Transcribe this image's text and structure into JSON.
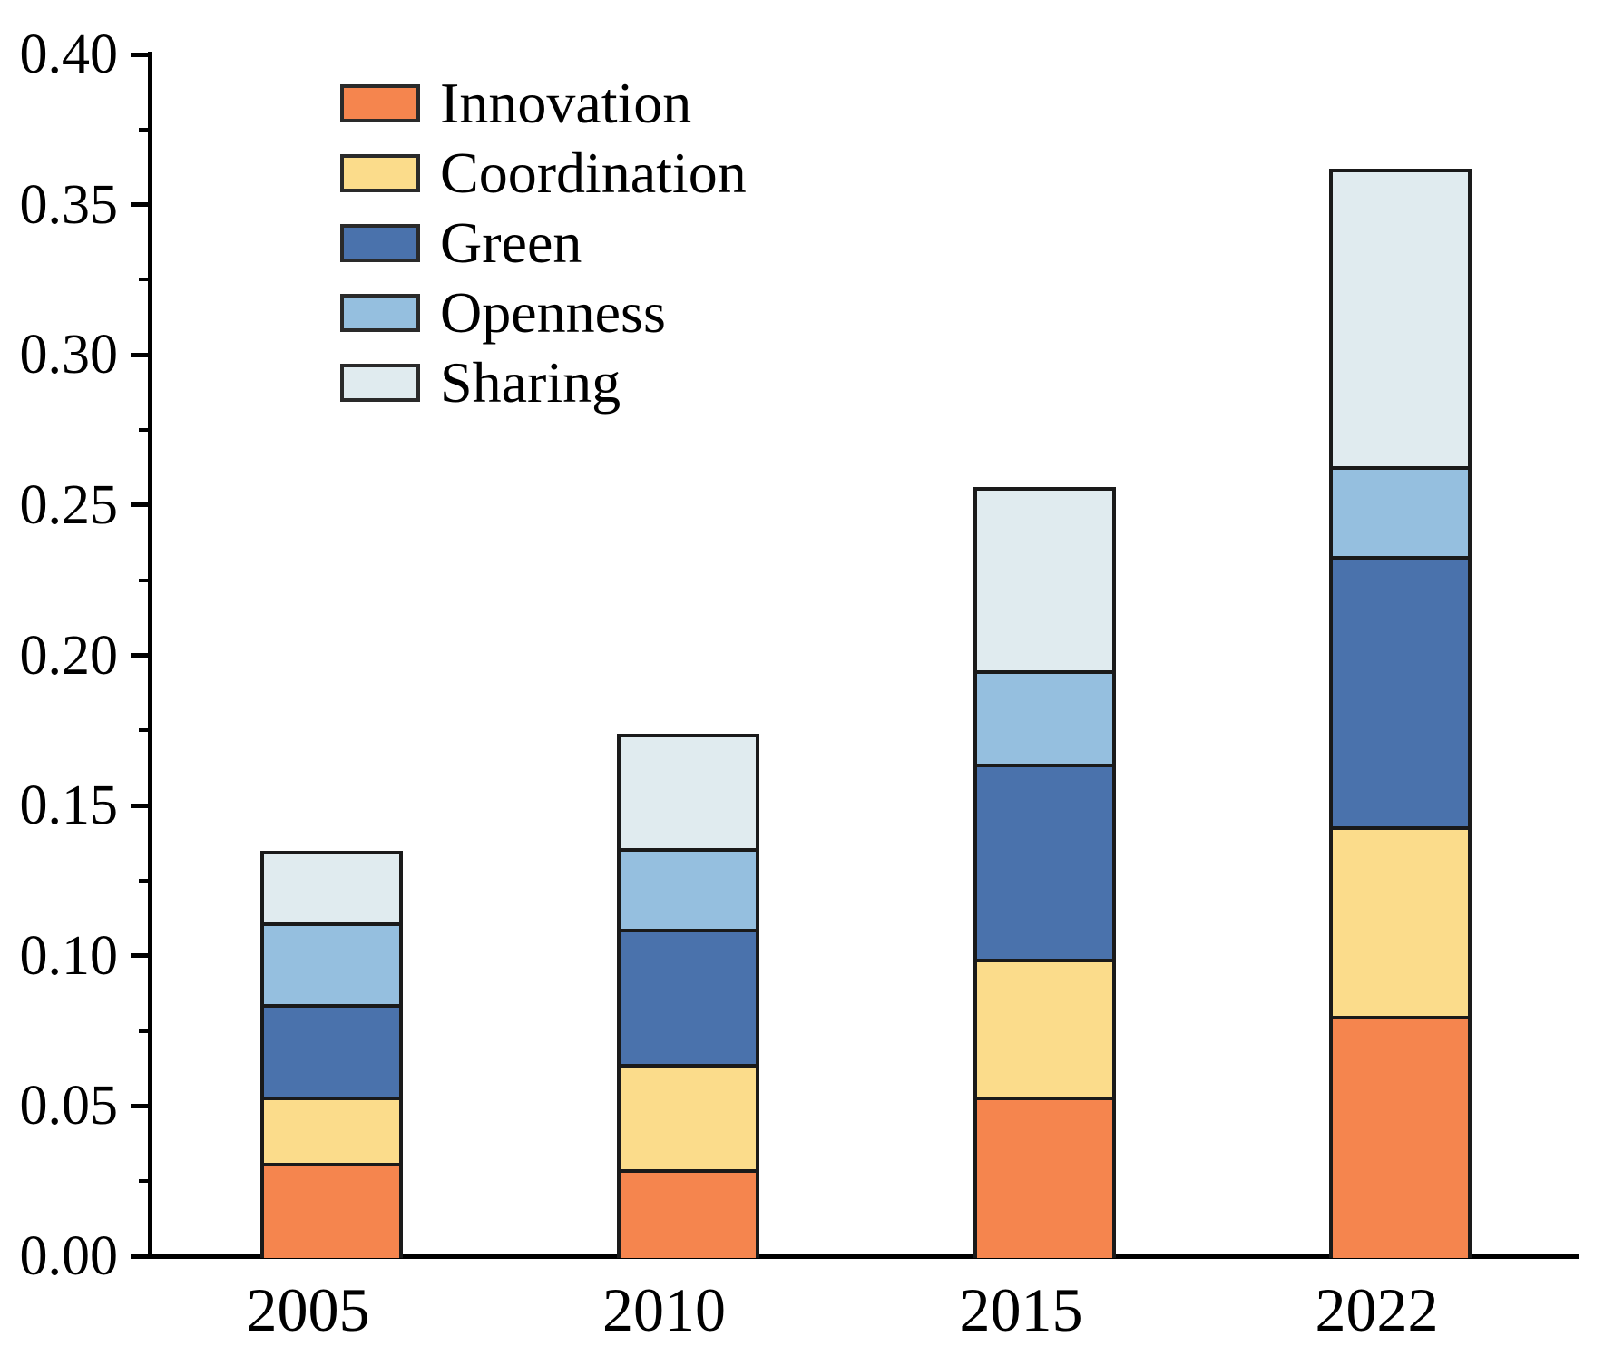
{
  "chart_data": {
    "type": "bar",
    "stacked": true,
    "title": "",
    "xlabel": "",
    "ylabel": "",
    "categories": [
      "2005",
      "2010",
      "2015",
      "2022"
    ],
    "series": [
      {
        "name": "Innovation",
        "color": "#F5854E",
        "values": [
          0.031,
          0.029,
          0.053,
          0.08
        ]
      },
      {
        "name": "Coordination",
        "color": "#FBDC8B",
        "values": [
          0.022,
          0.035,
          0.046,
          0.063
        ]
      },
      {
        "name": "Green",
        "color": "#4A72AC",
        "values": [
          0.031,
          0.045,
          0.065,
          0.09
        ]
      },
      {
        "name": "Openness",
        "color": "#95BFDF",
        "values": [
          0.027,
          0.027,
          0.031,
          0.03
        ]
      },
      {
        "name": "Sharing",
        "color": "#E0EBEF",
        "values": [
          0.024,
          0.038,
          0.061,
          0.099
        ]
      }
    ],
    "stack_totals": [
      0.135,
      0.174,
      0.256,
      0.362
    ],
    "ylim": [
      0.0,
      0.4
    ],
    "y_major_tick_labels": [
      "0.00",
      "0.05",
      "0.10",
      "0.15",
      "0.20",
      "0.25",
      "0.30",
      "0.35",
      "0.40"
    ],
    "y_major_tick_values": [
      0.0,
      0.05,
      0.1,
      0.15,
      0.2,
      0.25,
      0.3,
      0.35,
      0.4
    ],
    "y_minor_tick_values": [
      0.025,
      0.075,
      0.125,
      0.175,
      0.225,
      0.275,
      0.325,
      0.375
    ],
    "grid": false,
    "legend_position": "top-left-inside",
    "legend_items": [
      "Innovation",
      "Coordination",
      "Green",
      "Openness",
      "Sharing"
    ],
    "axis_color": "#000000",
    "bar_border_color": "#1A1A1A"
  }
}
